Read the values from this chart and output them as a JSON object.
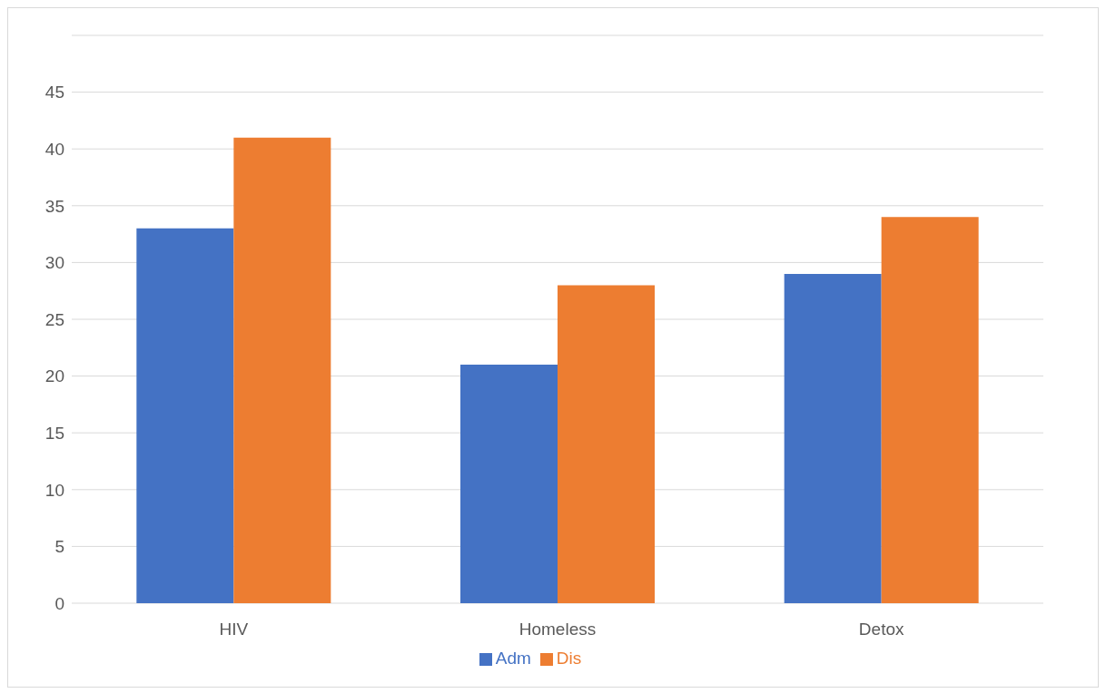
{
  "chart_data": {
    "type": "bar",
    "categories": [
      "HIV",
      "Homeless",
      "Detox"
    ],
    "series": [
      {
        "name": "Adm",
        "color": "#4472c4",
        "values": [
          33,
          21,
          29
        ]
      },
      {
        "name": "Dis",
        "color": "#ed7d31",
        "values": [
          41,
          28,
          34
        ]
      }
    ],
    "ylim": [
      0,
      50
    ],
    "yticks": [
      0,
      5,
      10,
      15,
      20,
      25,
      30,
      35,
      40,
      45
    ],
    "grid": "y",
    "legend": "bottom"
  }
}
